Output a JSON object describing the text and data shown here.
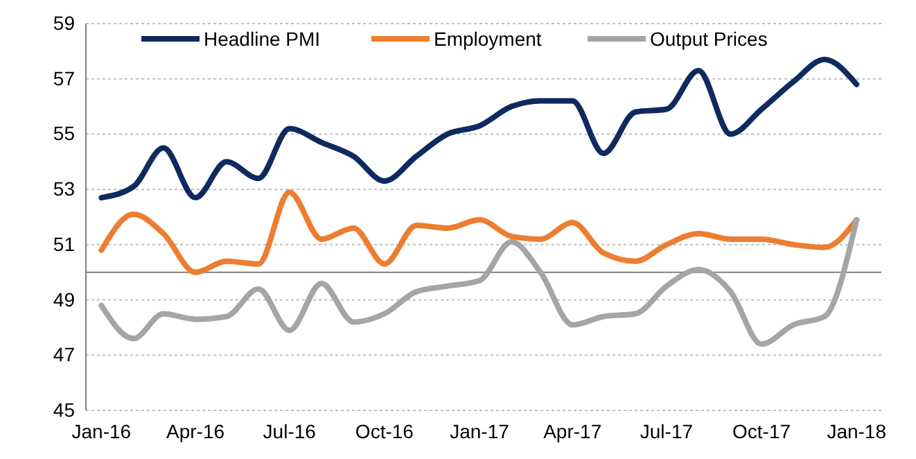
{
  "chart_data": {
    "type": "line",
    "x": [
      "2016-01",
      "2016-02",
      "2016-03",
      "2016-04",
      "2016-05",
      "2016-06",
      "2016-07",
      "2016-08",
      "2016-09",
      "2016-10",
      "2016-11",
      "2016-12",
      "2017-01",
      "2017-02",
      "2017-03",
      "2017-04",
      "2017-05",
      "2017-06",
      "2017-07",
      "2017-08",
      "2017-09",
      "2017-10",
      "2017-11",
      "2017-12",
      "2018-01"
    ],
    "series": [
      {
        "name": "Headline PMI",
        "color": "#0e2a5e",
        "values": [
          52.7,
          53.1,
          54.5,
          52.7,
          54.0,
          53.4,
          55.2,
          54.7,
          54.2,
          53.3,
          54.2,
          55.0,
          55.3,
          56.0,
          56.2,
          56.2,
          54.3,
          55.8,
          55.9,
          57.3,
          55.0,
          55.9,
          56.9,
          57.7,
          56.8
        ]
      },
      {
        "name": "Employment",
        "color": "#ed7d31",
        "values": [
          50.8,
          52.1,
          51.4,
          50.0,
          50.4,
          50.3,
          52.9,
          51.2,
          51.6,
          50.3,
          51.7,
          51.6,
          51.9,
          51.3,
          51.2,
          51.8,
          50.7,
          50.4,
          51.0,
          51.4,
          51.2,
          51.2,
          51.0,
          50.9,
          51.9
        ]
      },
      {
        "name": "Output Prices",
        "color": "#a5a5a5",
        "values": [
          48.8,
          47.6,
          48.5,
          48.3,
          48.4,
          49.4,
          47.9,
          49.6,
          48.2,
          48.5,
          49.3,
          49.5,
          49.7,
          51.1,
          50.0,
          48.1,
          48.4,
          48.5,
          49.5,
          50.1,
          49.3,
          47.4,
          48.1,
          48.4,
          51.9
        ]
      }
    ],
    "xlim": [
      "2015-12-17",
      "2018-01-25"
    ],
    "xticks": [
      {
        "value": "2016-01",
        "label": "Jan-16"
      },
      {
        "value": "2016-04",
        "label": "Apr-16"
      },
      {
        "value": "2016-07",
        "label": "Jul-16"
      },
      {
        "value": "2016-10",
        "label": "Oct-16"
      },
      {
        "value": "2017-01",
        "label": "Jan-17"
      },
      {
        "value": "2017-04",
        "label": "Apr-17"
      },
      {
        "value": "2017-07",
        "label": "Jul-17"
      },
      {
        "value": "2017-10",
        "label": "Oct-17"
      },
      {
        "value": "2018-01",
        "label": "Jan-18"
      }
    ],
    "ylim": [
      45,
      59
    ],
    "yticks": [
      45,
      47,
      49,
      51,
      53,
      55,
      57,
      59
    ],
    "grid": "y",
    "legend": "top",
    "marker": "none",
    "line_style": "solid",
    "ref_lines": [
      {
        "axis": "y",
        "value": 50,
        "color": "#808080"
      }
    ]
  }
}
